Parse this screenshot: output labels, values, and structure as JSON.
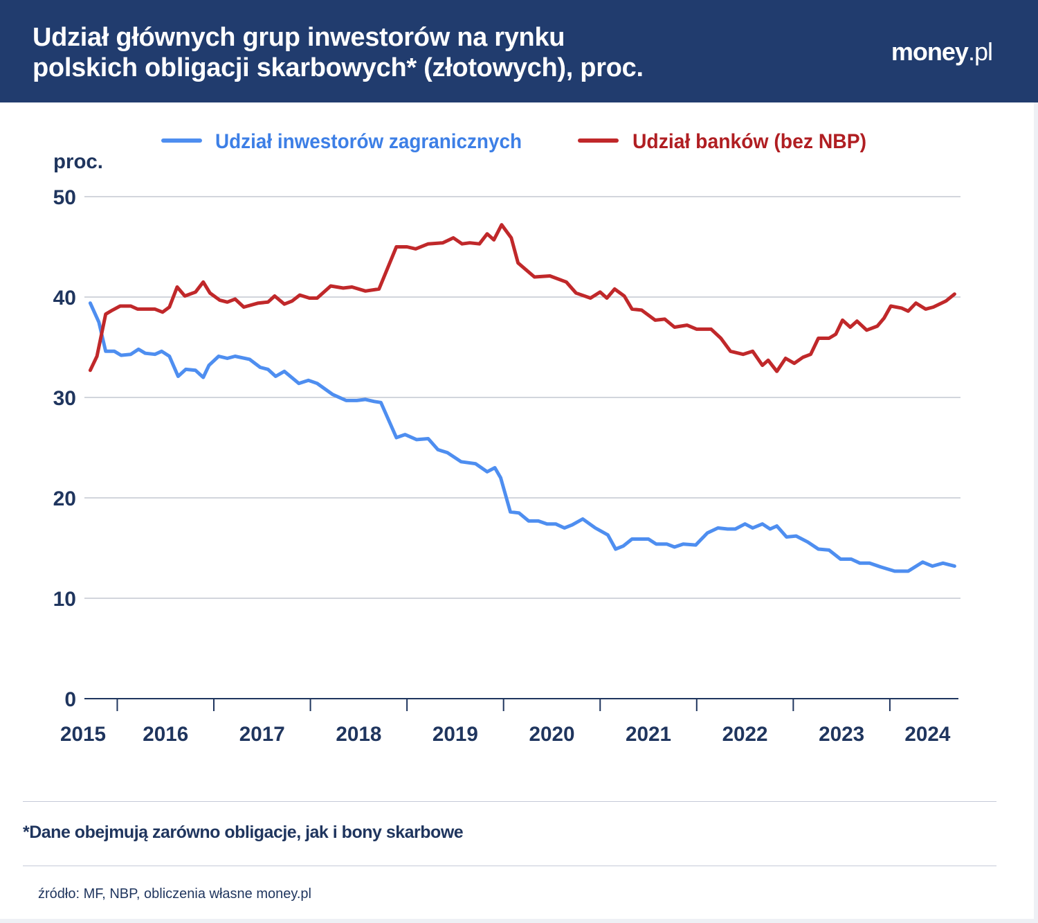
{
  "header": {
    "title_line1": "Udział głównych grup inwestorów na rynku",
    "title_line2": "polskich obligacji skarbowych* (złotowych), proc.",
    "logo_bold": "money",
    "logo_suffix": ".pl"
  },
  "footer": {
    "note": "*Dane obejmują zarówno obligacje, jak i bony skarbowe",
    "source": "źródło: MF, NBP, obliczenia własne money.pl"
  },
  "colors": {
    "header_bg": "#213c6e",
    "text": "#1f355e",
    "foreign": "#4e8ef0",
    "banks": "#c0282a",
    "grid": "#b8bcc8"
  },
  "chart_data": {
    "type": "line",
    "ylabel": "proc.",
    "ylim": [
      0,
      50
    ],
    "yticks": [
      0,
      10,
      20,
      30,
      40,
      50
    ],
    "xlim": [
      2015.66,
      2024.71
    ],
    "xticks": [
      2016,
      2017,
      2018,
      2019,
      2020,
      2021,
      2022,
      2023,
      2024
    ],
    "xtick_labels": [
      "2015",
      "2016",
      "2017",
      "2018",
      "2019",
      "2020",
      "2021",
      "2022",
      "2023",
      "2024"
    ],
    "grid": true,
    "legend_position": "top",
    "series": [
      {
        "name": "Udział inwestorów zagranicznych",
        "color": "#4e8ef0",
        "x": [
          2015.72,
          2015.81,
          2015.88,
          2015.97,
          2016.04,
          2016.14,
          2016.22,
          2016.29,
          2016.39,
          2016.46,
          2016.54,
          2016.63,
          2016.71,
          2016.81,
          2016.89,
          2016.95,
          2017.05,
          2017.14,
          2017.22,
          2017.37,
          2017.48,
          2017.56,
          2017.64,
          2017.73,
          2017.88,
          2017.98,
          2018.07,
          2018.23,
          2018.37,
          2018.48,
          2018.57,
          2018.66,
          2018.73,
          2018.89,
          2018.98,
          2019.1,
          2019.22,
          2019.32,
          2019.42,
          2019.56,
          2019.71,
          2019.83,
          2019.91,
          2019.97,
          2020.07,
          2020.16,
          2020.26,
          2020.36,
          2020.45,
          2020.54,
          2020.63,
          2020.71,
          2020.82,
          2020.95,
          2021.08,
          2021.16,
          2021.24,
          2021.33,
          2021.5,
          2021.58,
          2021.69,
          2021.77,
          2021.86,
          2021.99,
          2022.11,
          2022.22,
          2022.32,
          2022.4,
          2022.5,
          2022.58,
          2022.68,
          2022.76,
          2022.83,
          2022.93,
          2023.03,
          2023.15,
          2023.26,
          2023.37,
          2023.49,
          2023.6,
          2023.69,
          2023.79,
          2023.91,
          2024.05,
          2024.19,
          2024.34,
          2024.44,
          2024.55,
          2024.67
        ],
        "values": [
          39.4,
          37.5,
          34.6,
          34.6,
          34.2,
          34.3,
          34.8,
          34.4,
          34.3,
          34.6,
          34.1,
          32.1,
          32.8,
          32.7,
          32.0,
          33.2,
          34.1,
          33.9,
          34.1,
          33.8,
          33.0,
          32.8,
          32.1,
          32.6,
          31.4,
          31.7,
          31.4,
          30.3,
          29.7,
          29.7,
          29.8,
          29.6,
          29.5,
          26.0,
          26.3,
          25.8,
          25.9,
          24.8,
          24.5,
          23.6,
          23.4,
          22.6,
          23.0,
          22.0,
          18.6,
          18.5,
          17.7,
          17.7,
          17.4,
          17.4,
          17.0,
          17.3,
          17.9,
          17.0,
          16.3,
          14.9,
          15.2,
          15.9,
          15.9,
          15.4,
          15.4,
          15.1,
          15.4,
          15.3,
          16.5,
          17.0,
          16.9,
          16.9,
          17.4,
          17.0,
          17.4,
          16.9,
          17.2,
          16.1,
          16.2,
          15.6,
          14.9,
          14.8,
          13.9,
          13.9,
          13.5,
          13.5,
          13.1,
          12.7,
          12.7,
          13.6,
          13.2,
          13.5,
          13.2
        ]
      },
      {
        "name": "Udział banków (bez NBP)",
        "color": "#c0282a",
        "x": [
          2015.72,
          2015.79,
          2015.88,
          2015.95,
          2016.03,
          2016.14,
          2016.21,
          2016.39,
          2016.47,
          2016.54,
          2016.62,
          2016.7,
          2016.81,
          2016.89,
          2016.96,
          2017.06,
          2017.14,
          2017.22,
          2017.31,
          2017.46,
          2017.56,
          2017.63,
          2017.73,
          2017.81,
          2017.89,
          2017.99,
          2018.07,
          2018.21,
          2018.34,
          2018.43,
          2018.57,
          2018.71,
          2018.89,
          2019.0,
          2019.09,
          2019.22,
          2019.37,
          2019.48,
          2019.57,
          2019.65,
          2019.75,
          2019.83,
          2019.9,
          2019.98,
          2020.08,
          2020.15,
          2020.32,
          2020.48,
          2020.65,
          2020.75,
          2020.9,
          2021.0,
          2021.07,
          2021.15,
          2021.25,
          2021.33,
          2021.43,
          2021.57,
          2021.67,
          2021.77,
          2021.9,
          2022.0,
          2022.15,
          2022.25,
          2022.35,
          2022.48,
          2022.58,
          2022.68,
          2022.74,
          2022.83,
          2022.92,
          2023.01,
          2023.1,
          2023.18,
          2023.26,
          2023.37,
          2023.44,
          2023.51,
          2023.59,
          2023.66,
          2023.76,
          2023.87,
          2023.94,
          2024.01,
          2024.12,
          2024.19,
          2024.27,
          2024.37,
          2024.45,
          2024.58,
          2024.67
        ],
        "values": [
          32.7,
          34.1,
          38.3,
          38.7,
          39.1,
          39.1,
          38.8,
          38.8,
          38.5,
          39.0,
          41.0,
          40.1,
          40.5,
          41.5,
          40.4,
          39.7,
          39.5,
          39.8,
          39.0,
          39.4,
          39.5,
          40.1,
          39.3,
          39.6,
          40.2,
          39.9,
          39.9,
          41.1,
          40.9,
          41.0,
          40.6,
          40.8,
          45.0,
          45.0,
          44.8,
          45.3,
          45.4,
          45.9,
          45.3,
          45.4,
          45.3,
          46.3,
          45.7,
          47.2,
          45.9,
          43.4,
          42.0,
          42.1,
          41.5,
          40.4,
          39.9,
          40.5,
          39.9,
          40.8,
          40.1,
          38.8,
          38.7,
          37.7,
          37.8,
          37.0,
          37.2,
          36.8,
          36.8,
          35.9,
          34.6,
          34.3,
          34.6,
          33.2,
          33.7,
          32.6,
          33.9,
          33.4,
          34.0,
          34.3,
          35.9,
          35.9,
          36.3,
          37.7,
          37.0,
          37.6,
          36.7,
          37.1,
          37.9,
          39.1,
          38.9,
          38.6,
          39.4,
          38.8,
          39.0,
          39.6,
          40.3
        ]
      }
    ]
  }
}
